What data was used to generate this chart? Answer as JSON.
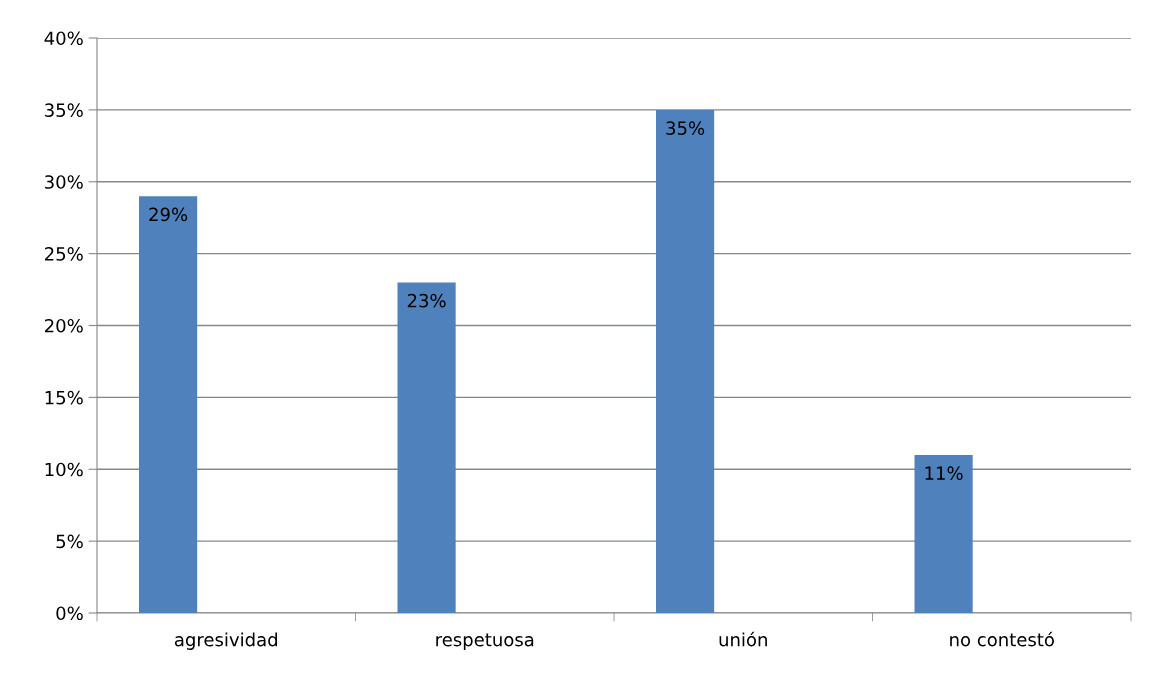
{
  "chart_data": {
    "type": "bar",
    "categories": [
      "agresividad",
      "respetuosa",
      "unión",
      "no contestó"
    ],
    "values": [
      29,
      23,
      35,
      11
    ],
    "value_labels": [
      "29%",
      "23%",
      "35%",
      "11%"
    ],
    "color": "#4f81bd",
    "ylim": [
      0,
      40
    ],
    "yticks": [
      {
        "value": 0,
        "label": "0%"
      },
      {
        "value": 5,
        "label": "5%"
      },
      {
        "value": 10,
        "label": "10%"
      },
      {
        "value": 15,
        "label": "15%"
      },
      {
        "value": 20,
        "label": "20%"
      },
      {
        "value": 25,
        "label": "25%"
      },
      {
        "value": 30,
        "label": "30%"
      },
      {
        "value": 35,
        "label": "35%"
      },
      {
        "value": 40,
        "label": "40%"
      }
    ],
    "grid": "y",
    "legend": false
  }
}
